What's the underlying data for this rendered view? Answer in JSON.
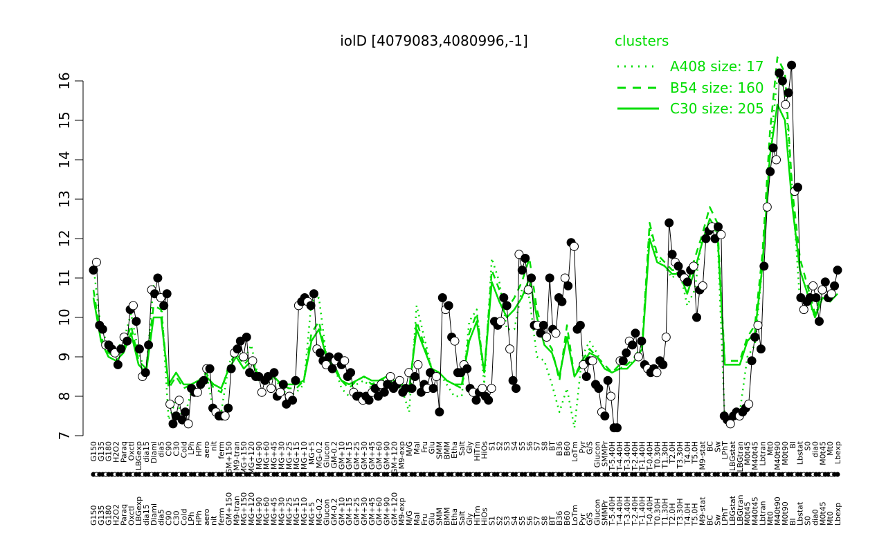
{
  "chart_data": {
    "type": "line",
    "title": "iolD [4079083,4080996,-1]",
    "xlabel": "",
    "ylabel": "",
    "ylim": [
      7,
      16.4
    ],
    "yticks": [
      7,
      8,
      9,
      10,
      11,
      12,
      13,
      14,
      15,
      16
    ],
    "grid": false,
    "legend": {
      "title": "clusters",
      "placement": "top-right",
      "entries": [
        {
          "label": "A408 size: 17",
          "style": "dotted"
        },
        {
          "label": "B54 size: 160",
          "style": "dashed"
        },
        {
          "label": "C30 size: 205",
          "style": "solid"
        }
      ]
    },
    "colors": {
      "lines": "#00dd00",
      "points_filled": "#000000",
      "points_open": "#ffffff",
      "axis": "#000000"
    },
    "x_tick_labels": [
      "G150",
      "G135",
      "G180",
      "H2O2",
      "Paraq",
      "Oxctl",
      "LBGexp",
      "dia15",
      "Diami",
      "dia5",
      "C90",
      "C30",
      "Cold",
      "LPh",
      "HPh",
      "aero",
      "nit",
      "ferm",
      "GM+150",
      "M9-tran",
      "MG+150",
      "MG+120",
      "MG+90",
      "MG+60",
      "MG+45",
      "MG+30",
      "MG+25",
      "MG+15",
      "MG+10",
      "MG+5",
      "MG-0.2",
      "Glucon",
      "GM-0.2",
      "GM+10",
      "GM+15",
      "GM+25",
      "GM+30",
      "GM+45",
      "GM+60",
      "GM+90",
      "GM+120",
      "M9-exp",
      "M/G",
      "Mal",
      "Fru",
      "Glu",
      "SMM",
      "BMM",
      "Etha",
      "Salt",
      "Gly",
      "HiTm",
      "HiOs",
      "S1",
      "S2",
      "S3",
      "S4",
      "S5",
      "S6",
      "S7",
      "S8",
      "BT",
      "B36",
      "B60",
      "LoTm",
      "Pyr",
      "G/S",
      "Glucon",
      "SMMPr",
      "T-5.40H",
      "T-4.40H",
      "T-3.40H",
      "T-2.40H",
      "T-1.40H",
      "T-0.40H",
      "T0.30H",
      "T1.30H",
      "T2.0H",
      "T3.30H",
      "T4.0H",
      "T5.0H",
      "M9-stat",
      "BC",
      "Sw",
      "LPhT",
      "LBGstat",
      "LBGtran",
      "M0t45",
      "M40t45",
      "Lbtran",
      "Mt0",
      "M40t90",
      "M0t90",
      "BI",
      "Lbstat",
      "S0",
      "dia0",
      "M0t45",
      "Mt0",
      "Lbexp"
    ],
    "series": [
      {
        "name": "",
        "x": [
          0,
          1,
          2,
          3,
          4,
          5,
          6,
          7,
          8,
          9,
          10,
          11,
          12,
          13,
          14,
          15,
          16,
          17,
          18,
          19,
          20,
          21,
          22,
          23,
          24,
          25,
          26,
          27,
          28,
          29,
          30,
          31,
          32,
          33,
          34,
          35,
          36,
          37,
          38,
          39,
          40,
          41,
          42,
          43,
          44,
          45,
          46,
          47,
          48,
          49,
          50,
          51,
          52,
          53,
          54,
          55,
          56,
          57,
          58,
          59,
          60,
          61,
          62,
          63,
          64,
          65,
          66,
          67,
          68,
          69,
          70,
          71,
          72,
          73,
          74,
          75,
          76,
          77,
          78,
          79,
          80,
          81,
          82,
          83,
          84,
          85,
          86,
          87,
          88,
          89,
          90,
          91,
          92,
          93,
          94,
          95,
          96,
          97,
          98,
          99
        ],
        "values": [
          11.3,
          9.7,
          9.3,
          9.2,
          9.4,
          10.1,
          9.1,
          8.6,
          10.8,
          10.5,
          7.4,
          7.9,
          7.4,
          8.1,
          8.2,
          8.6,
          7.6,
          7.6,
          8.8,
          9.3,
          8.9,
          9.3,
          8.4,
          8.3,
          8.5,
          8.2,
          8.0,
          8.1,
          8.3,
          10.4,
          10.5,
          9.0,
          8.8,
          8.2,
          8.0,
          8.3,
          8.4,
          8.2,
          8.3,
          8.5,
          8.3,
          8.2,
          7.6,
          10.3,
          9.5,
          8.7,
          8.6,
          8.3,
          8.0,
          8.0,
          9.9,
          10.2,
          8.3,
          11.5,
          10.9,
          9.7,
          9.7,
          10.7,
          10.5,
          9.0,
          8.9,
          8.3,
          7.6,
          8.2,
          7.2,
          9.0,
          9.4,
          9.1,
          8.7,
          8.6,
          8.7,
          8.8,
          8.9,
          9.2,
          12.3,
          11.5,
          11.3,
          11.0,
          11.2,
          10.3,
          10.7,
          12.1,
          12.2,
          12.2,
          7.4,
          7.6,
          7.6,
          9.0,
          9.3,
          11.3,
          14.2,
          16.1,
          15.8,
          13.2,
          10.4,
          10.5,
          10.0,
          10.7,
          10.6,
          10.8
        ]
      },
      {
        "name": "",
        "x": [
          0,
          1,
          2,
          3,
          4,
          5,
          6,
          7,
          8,
          9,
          10,
          11,
          12,
          13,
          14,
          15,
          16,
          17,
          18,
          19,
          20,
          21,
          22,
          23,
          24,
          25,
          26,
          27,
          28,
          29,
          30,
          31,
          32,
          33,
          34,
          35,
          36,
          37,
          38,
          39,
          40,
          41,
          42,
          43,
          44,
          45,
          46,
          47,
          48,
          49,
          50,
          51,
          52,
          53,
          54,
          55,
          56,
          57,
          58,
          59,
          60,
          61,
          62,
          63,
          64,
          65,
          66,
          67,
          68,
          69,
          70,
          71,
          72,
          73,
          74,
          75,
          76,
          77,
          78,
          79,
          80,
          81,
          82,
          83,
          84,
          85,
          86,
          87,
          88,
          89,
          90,
          91,
          92,
          93,
          94,
          95,
          96,
          97,
          98,
          99
        ],
        "values": [
          10.7,
          9.5,
          9.1,
          9.0,
          9.2,
          9.8,
          8.9,
          8.7,
          10.3,
          10.2,
          8.2,
          8.5,
          8.2,
          8.3,
          8.4,
          8.6,
          8.2,
          8.1,
          8.8,
          9.1,
          8.8,
          9.0,
          8.5,
          8.4,
          8.5,
          8.3,
          8.2,
          8.2,
          8.4,
          9.6,
          9.9,
          9.0,
          8.8,
          8.4,
          8.2,
          8.4,
          8.5,
          8.3,
          8.4,
          8.5,
          8.3,
          8.3,
          8.1,
          9.9,
          9.3,
          8.7,
          8.6,
          8.4,
          8.3,
          8.2,
          9.6,
          10.1,
          8.6,
          11.2,
          10.7,
          10.2,
          10.5,
          10.9,
          11.5,
          10.2,
          9.5,
          9.2,
          8.4,
          9.8,
          8.5,
          8.9,
          9.2,
          9.0,
          8.8,
          8.6,
          8.8,
          8.8,
          9.0,
          9.3,
          12.4,
          11.6,
          11.4,
          11.2,
          11.2,
          10.8,
          11.5,
          12.1,
          12.8,
          12.4,
          8.9,
          8.9,
          8.9,
          9.5,
          9.8,
          11.6,
          14.7,
          16.6,
          16.2,
          13.2,
          11.5,
          10.8,
          10.1,
          10.7,
          10.6,
          10.8
        ]
      },
      {
        "name": "",
        "x": [
          0,
          1,
          2,
          3,
          4,
          5,
          6,
          7,
          8,
          9,
          10,
          11,
          12,
          13,
          14,
          15,
          16,
          17,
          18,
          19,
          20,
          21,
          22,
          23,
          24,
          25,
          26,
          27,
          28,
          29,
          30,
          31,
          32,
          33,
          34,
          35,
          36,
          37,
          38,
          39,
          40,
          41,
          42,
          43,
          44,
          45,
          46,
          47,
          48,
          49,
          50,
          51,
          52,
          53,
          54,
          55,
          56,
          57,
          58,
          59,
          60,
          61,
          62,
          63,
          64,
          65,
          66,
          67,
          68,
          69,
          70,
          71,
          72,
          73,
          74,
          75,
          76,
          77,
          78,
          79,
          80,
          81,
          82,
          83,
          84,
          85,
          86,
          87,
          88,
          89,
          90,
          91,
          92,
          93,
          94,
          95,
          96,
          97,
          98,
          99
        ],
        "values": [
          10.5,
          9.4,
          9.0,
          8.9,
          9.1,
          9.6,
          8.8,
          8.6,
          10.0,
          10.0,
          8.3,
          8.6,
          8.3,
          8.3,
          8.4,
          8.5,
          8.3,
          8.2,
          8.7,
          9.0,
          8.7,
          8.9,
          8.5,
          8.4,
          8.5,
          8.3,
          8.3,
          8.3,
          8.4,
          9.4,
          9.7,
          9.0,
          8.7,
          8.4,
          8.3,
          8.4,
          8.5,
          8.4,
          8.4,
          8.5,
          8.4,
          8.3,
          8.2,
          9.7,
          9.2,
          8.7,
          8.6,
          8.4,
          8.3,
          8.3,
          9.4,
          9.9,
          8.6,
          10.9,
          10.4,
          10.0,
          10.2,
          10.5,
          11.0,
          10.0,
          9.3,
          9.1,
          8.5,
          9.5,
          8.5,
          8.8,
          9.1,
          9.0,
          8.7,
          8.6,
          8.7,
          8.7,
          8.9,
          9.2,
          12.0,
          11.4,
          11.3,
          11.1,
          11.1,
          10.6,
          11.2,
          11.9,
          12.5,
          12.2,
          8.8,
          8.8,
          8.8,
          9.4,
          9.6,
          11.3,
          14.1,
          15.4,
          15.0,
          12.8,
          11.2,
          10.6,
          10.0,
          10.5,
          10.4,
          10.6
        ]
      }
    ],
    "point_values": [
      11.2,
      11.4,
      9.8,
      9.7,
      9.3,
      9.3,
      9.2,
      9.1,
      8.8,
      9.2,
      9.5,
      9.4,
      10.2,
      10.3,
      9.9,
      9.2,
      8.5,
      8.6,
      9.3,
      10.7,
      10.6,
      11.0,
      10.5,
      10.3,
      10.6,
      7.8,
      7.3,
      7.5,
      7.9,
      7.4,
      7.6,
      7.3,
      8.2,
      8.1,
      8.1,
      8.3,
      8.4,
      8.7,
      8.7,
      7.7,
      7.6,
      7.5,
      7.5,
      7.5,
      7.7,
      8.7,
      9.1,
      9.2,
      9.4,
      9.0,
      9.5,
      8.6,
      8.9,
      8.5,
      8.5,
      8.1,
      8.4,
      8.5,
      8.2,
      8.6,
      8.0,
      8.1,
      8.3,
      7.8,
      8.0,
      7.9,
      8.4,
      10.3,
      10.4,
      10.5,
      10.4,
      10.3,
      10.6,
      9.2,
      9.1,
      8.9,
      8.8,
      9.0,
      8.7,
      8.9,
      9.0,
      8.8,
      8.9,
      8.5,
      8.6,
      8.1,
      8.0,
      8.0,
      7.9,
      8.0,
      7.9,
      8.1,
      8.2,
      8.0,
      8.3,
      8.1,
      8.3,
      8.5,
      8.2,
      8.3,
      8.4,
      8.1,
      8.2,
      8.6,
      8.2,
      8.5,
      8.8,
      8.1,
      8.3,
      8.2,
      8.6,
      8.2,
      8.5,
      7.6,
      10.5,
      10.2,
      10.3,
      9.5,
      9.4,
      8.6,
      8.6,
      8.8,
      8.7,
      8.2,
      8.1,
      7.9,
      8.1,
      8.2,
      8.0,
      7.9,
      8.2,
      9.9,
      9.8,
      9.9,
      10.5,
      10.3,
      9.2,
      8.4,
      8.2,
      11.6,
      11.2,
      11.5,
      10.7,
      11.0,
      9.8,
      9.8,
      9.6,
      9.8,
      9.5,
      11.0,
      9.7,
      9.6,
      10.5,
      10.4,
      11.0,
      10.8,
      11.9,
      11.8,
      9.7,
      9.8,
      8.8,
      8.5,
      8.9,
      8.9,
      8.3,
      8.2,
      7.6,
      7.5,
      8.4,
      8.0,
      7.2,
      7.2,
      8.9,
      8.9,
      9.1,
      9.4,
      9.3,
      9.6,
      9.0,
      9.4,
      8.8,
      8.7,
      8.6,
      8.7,
      8.6,
      8.9,
      8.8,
      9.5,
      12.4,
      11.6,
      11.4,
      11.3,
      11.1,
      11.0,
      10.9,
      11.2,
      11.3,
      10.0,
      10.7,
      10.8,
      12.0,
      12.2,
      12.3,
      12.0,
      12.3,
      12.1,
      7.5,
      7.4,
      7.3,
      7.5,
      7.6,
      7.5,
      7.6,
      7.7,
      7.8,
      8.9,
      9.5,
      9.8,
      9.2,
      11.3,
      12.8,
      13.7,
      14.3,
      14.0,
      16.2,
      16.0,
      15.4,
      15.7,
      16.4,
      13.2,
      13.3,
      10.5,
      10.2,
      10.4,
      10.5,
      10.8,
      10.5,
      9.9,
      10.7,
      10.9,
      10.5,
      10.6,
      10.8,
      11.2
    ]
  }
}
